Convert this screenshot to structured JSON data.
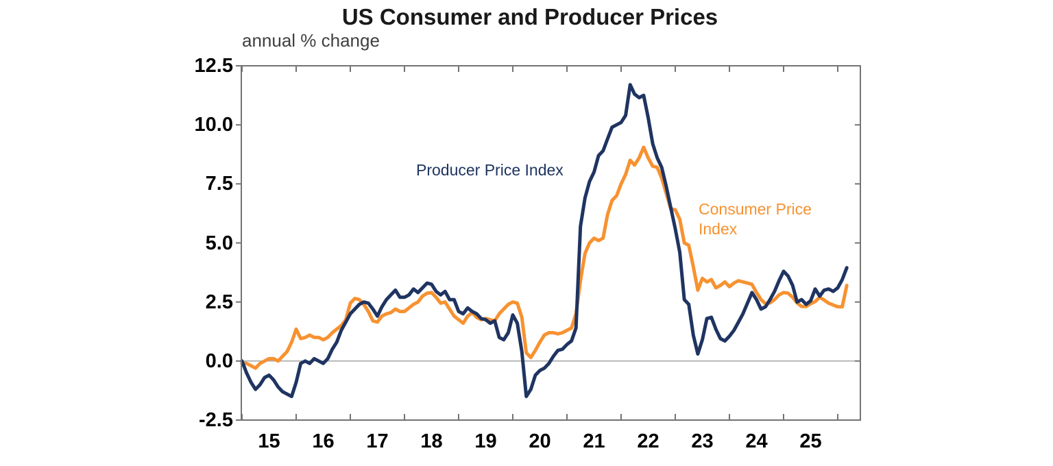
{
  "header": {
    "title": "US Consumer and Producer Prices",
    "subtitle": "annual % change"
  },
  "annotations": {
    "ppi_label": "Producer Price Index",
    "cpi_label": "Consumer Price\nIndex"
  },
  "colors": {
    "ppi_line": "#1F3461",
    "cpi_line": "#F79231",
    "frame": "#737373",
    "tick": "#737373",
    "zero_line": "#A6A6A6",
    "title_text": "#1A1A1A",
    "subtitle_text": "#404040",
    "tick_label_text": "#000000"
  },
  "chart_data": {
    "type": "line",
    "title": "US Consumer and Producer Prices",
    "ylabel": "annual % change",
    "xlabel": "",
    "grid": false,
    "zero_line": true,
    "legend_position": "inline-annotations",
    "ylim": [
      -2.5,
      12.5
    ],
    "x_domain_years": [
      2014.99,
      2026.42
    ],
    "y_ticks": [
      12.5,
      10.0,
      7.5,
      5.0,
      2.5,
      0.0,
      -2.5
    ],
    "y_tick_labels": [
      "12.5",
      "10.0",
      "7.5",
      "5.0",
      "2.5",
      "0.0",
      "-2.5"
    ],
    "x_tick_years": [
      2015,
      2016,
      2017,
      2018,
      2019,
      2020,
      2021,
      2022,
      2023,
      2024,
      2025,
      2026
    ],
    "x_tick_labels": [
      "15",
      "16",
      "17",
      "18",
      "19",
      "20",
      "21",
      "22",
      "23",
      "24",
      "25"
    ],
    "x_start_year": 2015.0,
    "x_step_years": 0.0833333,
    "series": [
      {
        "name": "Consumer Price Index",
        "color": "#F79231",
        "values": [
          -0.1,
          -0.1,
          -0.2,
          -0.3,
          -0.1,
          0.0,
          0.1,
          0.1,
          0.0,
          0.2,
          0.4,
          0.8,
          1.35,
          0.95,
          1.0,
          1.1,
          1.0,
          1.0,
          0.9,
          1.0,
          1.2,
          1.35,
          1.5,
          1.75,
          2.45,
          2.65,
          2.6,
          2.4,
          2.1,
          1.7,
          1.65,
          1.9,
          2.0,
          2.05,
          2.2,
          2.1,
          2.1,
          2.25,
          2.4,
          2.5,
          2.75,
          2.87,
          2.9,
          2.7,
          2.45,
          2.5,
          2.2,
          1.9,
          1.75,
          1.6,
          1.9,
          2.05,
          1.85,
          1.75,
          1.8,
          1.75,
          1.7,
          2.0,
          2.2,
          2.4,
          2.5,
          2.45,
          1.85,
          0.35,
          0.15,
          0.45,
          0.8,
          1.1,
          1.2,
          1.2,
          1.15,
          1.2,
          1.3,
          1.4,
          2.0,
          3.4,
          4.55,
          5.0,
          5.2,
          5.1,
          5.2,
          6.2,
          6.8,
          7.0,
          7.5,
          7.9,
          8.5,
          8.3,
          8.6,
          9.05,
          8.6,
          8.25,
          8.2,
          7.75,
          7.1,
          6.45,
          6.4,
          6.0,
          5.0,
          4.9,
          4.0,
          3.0,
          3.5,
          3.35,
          3.45,
          3.1,
          3.2,
          3.35,
          3.15,
          3.3,
          3.4,
          3.35,
          3.3,
          3.25,
          2.9,
          2.6,
          2.43,
          2.46,
          2.6,
          2.8,
          2.9,
          2.87,
          2.7,
          2.46,
          2.31,
          2.31,
          2.43,
          2.52,
          2.7,
          2.58,
          2.45,
          2.37,
          2.3,
          2.3,
          3.2
        ]
      },
      {
        "name": "Producer Price Index",
        "color": "#1F3461",
        "values": [
          0.0,
          -0.5,
          -0.9,
          -1.2,
          -1.0,
          -0.7,
          -0.6,
          -0.8,
          -1.1,
          -1.3,
          -1.4,
          -1.5,
          -0.9,
          -0.1,
          0.0,
          -0.1,
          0.1,
          0.0,
          -0.1,
          0.1,
          0.5,
          0.8,
          1.3,
          1.65,
          2.0,
          2.2,
          2.4,
          2.5,
          2.45,
          2.2,
          1.9,
          2.3,
          2.6,
          2.8,
          3.0,
          2.7,
          2.7,
          2.8,
          3.05,
          2.9,
          3.1,
          3.3,
          3.25,
          2.95,
          2.8,
          2.95,
          2.6,
          2.6,
          2.1,
          2.0,
          2.25,
          2.1,
          2.0,
          1.8,
          1.75,
          1.6,
          1.7,
          1.0,
          0.9,
          1.2,
          1.95,
          1.6,
          0.4,
          -1.5,
          -1.2,
          -0.6,
          -0.4,
          -0.3,
          -0.1,
          0.2,
          0.45,
          0.5,
          0.7,
          0.85,
          1.4,
          5.7,
          6.9,
          7.6,
          8.0,
          8.7,
          8.9,
          9.4,
          9.9,
          10.0,
          10.1,
          10.4,
          11.7,
          11.3,
          11.15,
          11.25,
          10.3,
          9.2,
          8.6,
          8.2,
          7.4,
          6.5,
          5.6,
          4.6,
          2.6,
          2.4,
          1.1,
          0.3,
          0.9,
          1.8,
          1.85,
          1.35,
          0.95,
          0.85,
          1.05,
          1.3,
          1.65,
          2.0,
          2.45,
          2.9,
          2.6,
          2.2,
          2.3,
          2.6,
          2.95,
          3.4,
          3.8,
          3.6,
          3.2,
          2.5,
          2.6,
          2.4,
          2.55,
          3.05,
          2.75,
          3.0,
          3.05,
          2.95,
          3.1,
          3.45,
          3.95
        ]
      }
    ]
  }
}
